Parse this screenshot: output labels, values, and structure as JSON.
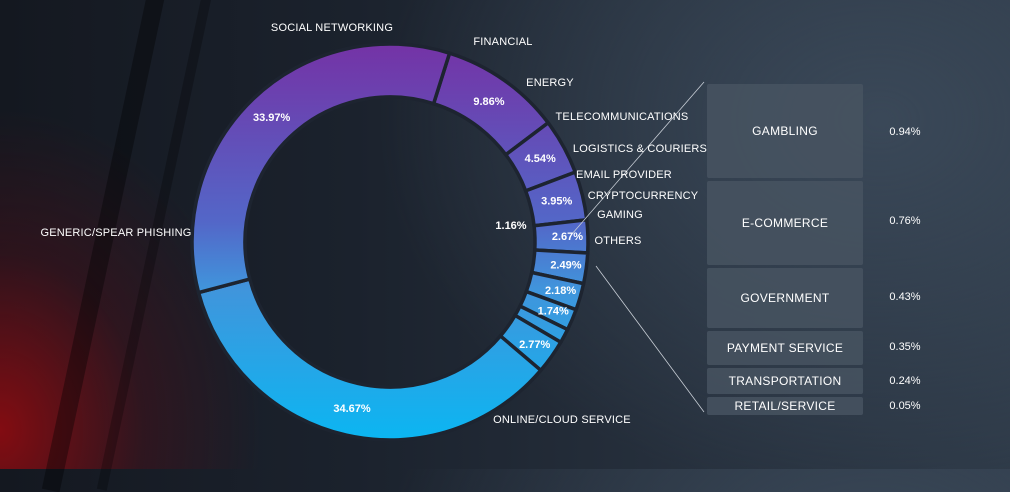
{
  "chart_data": {
    "type": "pie",
    "donut": true,
    "slices": [
      {
        "name": "SOCIAL NETWORKING",
        "label": "9.86%",
        "value": 9.86
      },
      {
        "name": "FINANCIAL",
        "label": "4.54%",
        "value": 4.54
      },
      {
        "name": "ENERGY",
        "label": "3.95%",
        "value": 3.95
      },
      {
        "name": "TELECOMMUNICATIONS",
        "label": "2.67%",
        "value": 2.67
      },
      {
        "name": "LOGISTICS & COURIERS",
        "label": "2.49%",
        "value": 2.49
      },
      {
        "name": "EMAIL PROVIDER",
        "label": "2.18%",
        "value": 2.18
      },
      {
        "name": "CRYPTOCURRENCY",
        "label": "1.74%",
        "value": 1.74
      },
      {
        "name": "GAMING",
        "label": "1.16%",
        "value": 1.16
      },
      {
        "name": "OTHERS",
        "label": "2.77%",
        "value": 2.77
      },
      {
        "name": "ONLINE/CLOUD SERVICE",
        "label": "34.67%",
        "value": 34.67
      },
      {
        "name": "GENERIC/SPEAR PHISHING",
        "label": "33.97%",
        "value": 33.97
      }
    ],
    "others_breakdown": [
      {
        "name": "GAMBLING",
        "label": "0.94%",
        "value": 0.94
      },
      {
        "name": "E-COMMERCE",
        "label": "0.76%",
        "value": 0.76
      },
      {
        "name": "GOVERNMENT",
        "label": "0.43%",
        "value": 0.43
      },
      {
        "name": "PAYMENT SERVICE",
        "label": "0.35%",
        "value": 0.35
      },
      {
        "name": "TRANSPORTATION",
        "label": "0.24%",
        "value": 0.24
      },
      {
        "name": "RETAIL/SERVICE",
        "label": "0.05%",
        "value": 0.05
      }
    ],
    "colors": {
      "gradient_top": "#7433a6",
      "gradient_mid": "#4a82d4",
      "gradient_bottom": "#0bb6f2",
      "separator": "#1d2430",
      "box": "#485462",
      "text": "#ffffff"
    }
  }
}
